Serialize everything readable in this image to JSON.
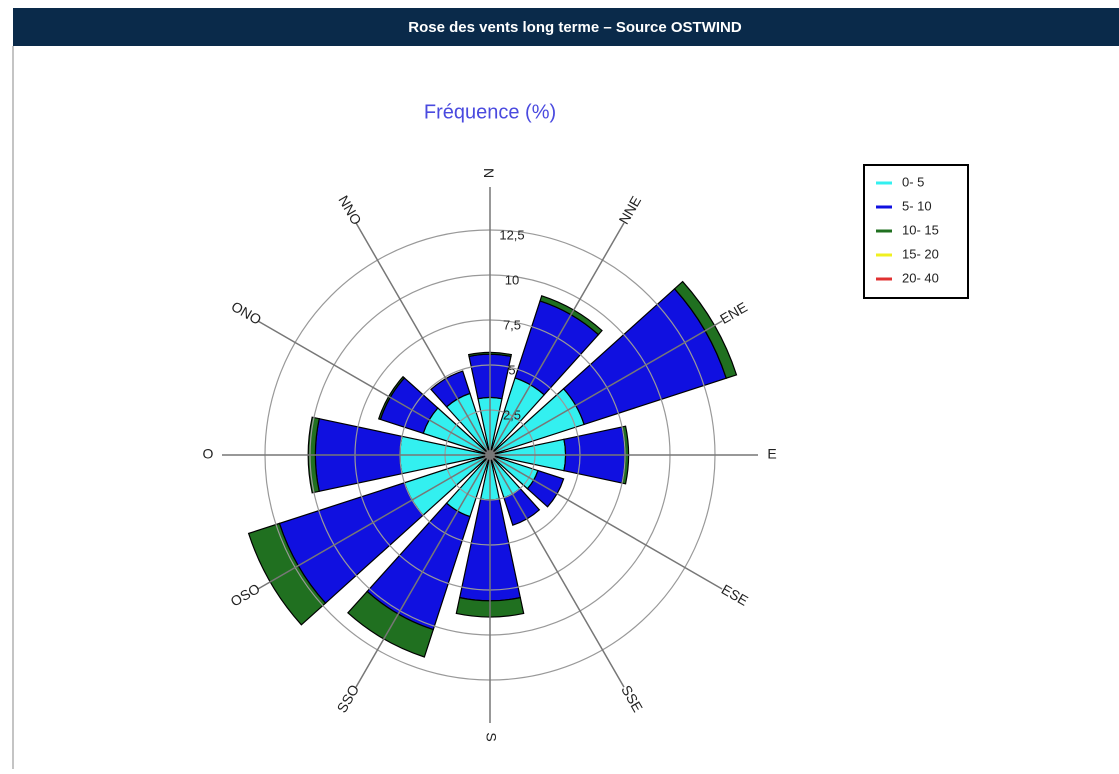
{
  "header": {
    "title": "Rose des vents long terme – Source OSTWIND"
  },
  "chart_data": {
    "type": "windrose",
    "title": "Fréquence (%)",
    "categories": [
      "N",
      "NNE",
      "ENE",
      "E",
      "ESE",
      "SSE",
      "S",
      "SSO",
      "OSO",
      "O",
      "ONO",
      "NNO"
    ],
    "series": [
      {
        "name": "0- 5",
        "color": "#33f0f0",
        "values": [
          3.2,
          4.5,
          5.5,
          4.2,
          2.8,
          2.5,
          2.5,
          3.6,
          5,
          5,
          3.9,
          3.6
        ]
      },
      {
        "name": "5- 10",
        "color": "#1010e0",
        "values": [
          2.4,
          4.5,
          8.3,
          3.3,
          1.5,
          1.6,
          5.6,
          6.6,
          7.3,
          4.7,
          2.5,
          1.3
        ]
      },
      {
        "name": "10- 15",
        "color": "#207020",
        "values": [
          0.1,
          0.3,
          0.6,
          0.2,
          0,
          0,
          0.9,
          1.6,
          1.8,
          0.4,
          0.1,
          0
        ]
      },
      {
        "name": "15- 20",
        "color": "#f0f020",
        "values": [
          0,
          0,
          0,
          0,
          0,
          0,
          0,
          0,
          0,
          0,
          0,
          0
        ]
      },
      {
        "name": "20- 40",
        "color": "#e03030",
        "values": [
          0,
          0,
          0,
          0,
          0,
          0,
          0,
          0,
          0,
          0,
          0,
          0
        ]
      }
    ],
    "rlim": [
      0,
      12.5
    ],
    "rticks": [
      {
        "value": 2.5,
        "label": "2,5"
      },
      5,
      {
        "value": 7.5,
        "label": "7,5"
      },
      10,
      {
        "value": 12.5,
        "label": "12,5"
      }
    ]
  }
}
